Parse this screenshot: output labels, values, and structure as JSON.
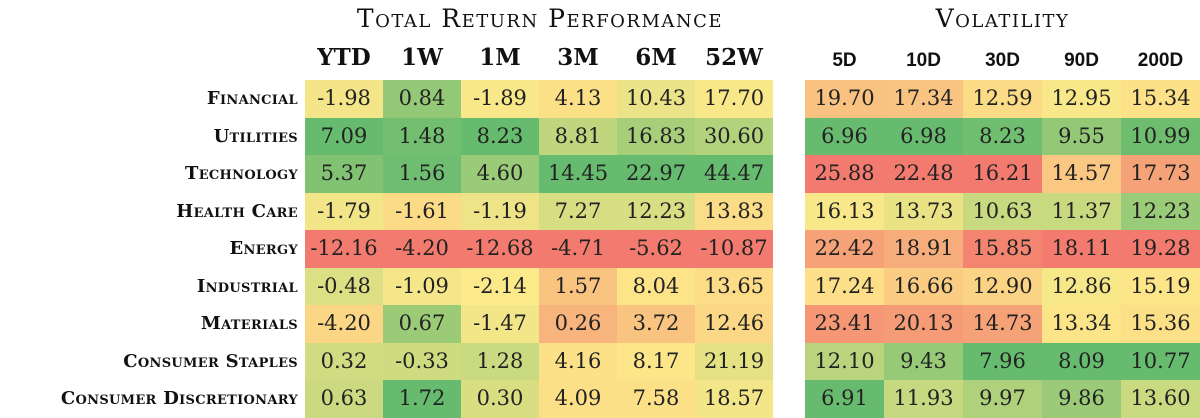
{
  "chart_data": [
    {
      "type": "heatmap",
      "title": "Total Return Performance",
      "columns": [
        "YTD",
        "1W",
        "1M",
        "3M",
        "6M",
        "52W"
      ],
      "rows": [
        "Financial",
        "Utilities",
        "Technology",
        "Health Care",
        "Energy",
        "Industrial",
        "Materials",
        "Consumer Staples",
        "Consumer Discretionary"
      ],
      "values": [
        [
          -1.98,
          0.84,
          -1.89,
          4.13,
          10.43,
          17.7
        ],
        [
          7.09,
          1.48,
          8.23,
          8.81,
          16.83,
          30.6
        ],
        [
          5.37,
          1.56,
          4.6,
          14.45,
          22.97,
          44.47
        ],
        [
          -1.79,
          -1.61,
          -1.19,
          7.27,
          12.23,
          13.83
        ],
        [
          -12.16,
          -4.2,
          -12.68,
          -4.71,
          -5.62,
          -10.87
        ],
        [
          -0.48,
          -1.09,
          -2.14,
          1.57,
          8.04,
          13.65
        ],
        [
          -4.2,
          0.67,
          -1.47,
          0.26,
          3.72,
          12.46
        ],
        [
          0.32,
          -0.33,
          1.28,
          4.16,
          8.17,
          21.19
        ],
        [
          0.63,
          1.72,
          0.3,
          4.09,
          7.58,
          18.57
        ]
      ],
      "color_scale": "red-yellow-green, higher is greener",
      "colors": {
        "low": "#f27a6e",
        "mid": "#fde98a",
        "high": "#66bb6e"
      }
    },
    {
      "type": "heatmap",
      "title": "Volatility",
      "columns": [
        "5D",
        "10D",
        "30D",
        "90D",
        "200D"
      ],
      "rows": [
        "Financial",
        "Utilities",
        "Technology",
        "Health Care",
        "Energy",
        "Industrial",
        "Materials",
        "Consumer Staples",
        "Consumer Discretionary"
      ],
      "values": [
        [
          19.7,
          17.34,
          12.59,
          12.95,
          15.34
        ],
        [
          6.96,
          6.98,
          8.23,
          9.55,
          10.99
        ],
        [
          25.88,
          22.48,
          16.21,
          14.57,
          17.73
        ],
        [
          16.13,
          13.73,
          10.63,
          11.37,
          12.23
        ],
        [
          22.42,
          18.91,
          15.85,
          18.11,
          19.28
        ],
        [
          17.24,
          16.66,
          12.9,
          12.86,
          15.19
        ],
        [
          23.41,
          20.13,
          14.73,
          13.34,
          15.36
        ],
        [
          12.1,
          9.43,
          7.96,
          8.09,
          10.77
        ],
        [
          6.91,
          11.93,
          9.97,
          9.86,
          13.6
        ]
      ],
      "color_scale": "green-yellow-red per column, higher is redder",
      "colors": {
        "low": "#66bb6e",
        "mid": "#fde98a",
        "high": "#f27a6e"
      }
    }
  ]
}
